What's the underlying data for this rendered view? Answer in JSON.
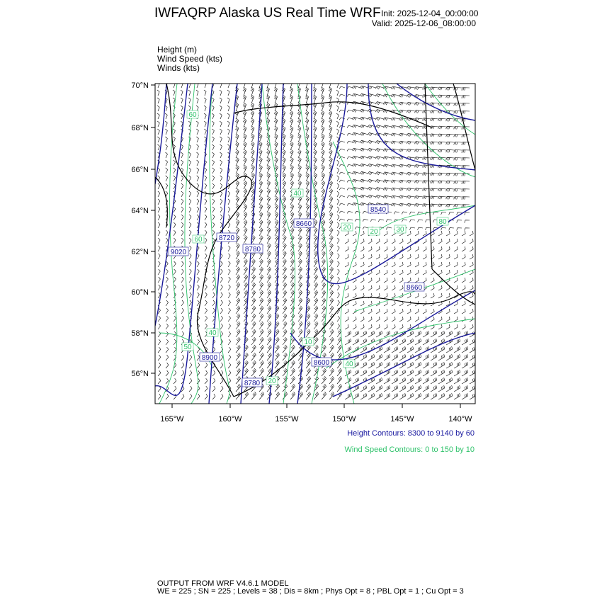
{
  "header": {
    "title": "IWFAQRP Alaska US Real Time WRF",
    "init": "Init: 2025-12-04_00:00:00",
    "valid": "Valid: 2025-12-06_08:00:00"
  },
  "fields": [
    "Height   (m)",
    "Wind Speed   (kts)",
    "Winds   (kts)"
  ],
  "map": {
    "lat_labels": [
      "70°N",
      "68°N",
      "66°N",
      "64°N",
      "62°N",
      "60°N",
      "58°N",
      "56°N"
    ],
    "lon_labels": [
      "165°W",
      "160°W",
      "155°W",
      "150°W",
      "145°W",
      "140°W"
    ],
    "height_contour_labels": [
      "9020",
      "8720",
      "8780",
      "8660",
      "8540",
      "8660",
      "8900",
      "8600",
      "8780"
    ],
    "wind_contour_labels": [
      "60",
      "60",
      "40",
      "20",
      "20",
      "30",
      "80",
      "50",
      "40",
      "40",
      "20",
      "10"
    ],
    "colors": {
      "height": "#1a1a9a",
      "wind_speed": "#2ec26a",
      "barbs": "#000000",
      "coast": "#000000"
    }
  },
  "legend": {
    "height": "Height Contours: 8300 to 9140 by 60",
    "wind": "Wind Speed Contours: 0 to 150 by 10"
  },
  "footer": {
    "line1": "OUTPUT FROM WRF V4.6.1 MODEL",
    "line2": "WE = 225 ; SN = 225 ; Levels = 38 ; Dis = 8km ; Phys Opt = 8 ; PBL Opt = 1 ; Cu Opt = 3"
  }
}
